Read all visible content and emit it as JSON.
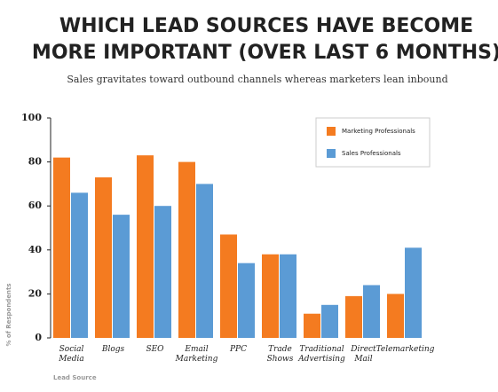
{
  "chart_data": {
    "type": "bar",
    "title": [
      "WHICH LEAD SOURCES HAVE BECOME",
      "MORE IMPORTANT (OVER LAST 6 MONTHS)"
    ],
    "subtitle": "Sales gravitates toward outbound channels whereas marketers lean inbound",
    "categories": [
      "Social Media",
      "Blogs",
      "SEO",
      "Email Marketing",
      "PPC",
      "Trade Shows",
      "Traditional Advertising",
      "Direct Mail",
      "Telemarketing"
    ],
    "series": [
      {
        "name": "Marketing Professionals",
        "color": "#f47b20",
        "values": [
          82,
          73,
          83,
          80,
          47,
          38,
          11,
          19,
          20
        ]
      },
      {
        "name": "Sales Professionals",
        "color": "#5b9bd5",
        "values": [
          66,
          56,
          60,
          70,
          34,
          38,
          15,
          24,
          41
        ]
      }
    ],
    "ylim": [
      0,
      100
    ],
    "yticks": [
      0,
      20,
      40,
      60,
      80,
      100
    ],
    "ylabel": "% of Respondents",
    "xlabel": "Lead Source",
    "legend": "top-right"
  }
}
